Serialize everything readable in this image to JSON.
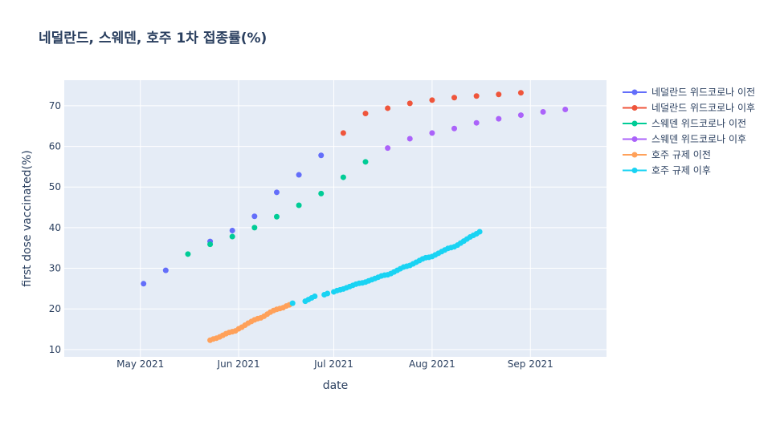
{
  "chart_data": {
    "type": "scatter",
    "title": "네덜란드, 스웨덴, 호주 1차 접종률(%)",
    "xlabel": "date",
    "ylabel": "first dose vaccinated(%)",
    "xlim": [
      "2021-04-07",
      "2021-09-25"
    ],
    "ylim": [
      8.2,
      76.3
    ],
    "x_ticks": [
      {
        "date": "2021-05-01",
        "label": "May 2021"
      },
      {
        "date": "2021-06-01",
        "label": "Jun 2021"
      },
      {
        "date": "2021-07-01",
        "label": "Jul 2021"
      },
      {
        "date": "2021-08-01",
        "label": "Aug 2021"
      },
      {
        "date": "2021-09-01",
        "label": "Sep 2021"
      }
    ],
    "y_ticks": [
      10,
      20,
      30,
      40,
      50,
      60,
      70
    ],
    "grid": true,
    "legend_position": "right",
    "series": [
      {
        "name": "네덜란드 위드코로나 이전",
        "color": "#636efa",
        "points": [
          [
            "2021-05-02",
            26.2
          ],
          [
            "2021-05-09",
            29.5
          ],
          [
            "2021-05-23",
            36.6
          ],
          [
            "2021-05-30",
            39.3
          ],
          [
            "2021-06-06",
            42.8
          ],
          [
            "2021-06-13",
            48.7
          ],
          [
            "2021-06-20",
            53.0
          ],
          [
            "2021-06-27",
            57.8
          ]
        ]
      },
      {
        "name": "네덜란드 위드코로나 이후",
        "color": "#ef553b",
        "points": [
          [
            "2021-07-04",
            63.3
          ],
          [
            "2021-07-11",
            68.1
          ],
          [
            "2021-07-18",
            69.4
          ],
          [
            "2021-07-25",
            70.6
          ],
          [
            "2021-08-01",
            71.4
          ],
          [
            "2021-08-08",
            72.0
          ],
          [
            "2021-08-15",
            72.4
          ],
          [
            "2021-08-22",
            72.8
          ],
          [
            "2021-08-29",
            73.2
          ]
        ]
      },
      {
        "name": "스웨덴 위드코로나 이전",
        "color": "#00cc96",
        "points": [
          [
            "2021-05-16",
            33.5
          ],
          [
            "2021-05-23",
            35.9
          ],
          [
            "2021-05-30",
            37.8
          ],
          [
            "2021-06-06",
            40.0
          ],
          [
            "2021-06-13",
            42.7
          ],
          [
            "2021-06-20",
            45.5
          ],
          [
            "2021-06-27",
            48.4
          ],
          [
            "2021-07-04",
            52.4
          ],
          [
            "2021-07-11",
            56.2
          ]
        ]
      },
      {
        "name": "스웨덴 위드코로나 이후",
        "color": "#ab63fa",
        "points": [
          [
            "2021-07-18",
            59.6
          ],
          [
            "2021-07-25",
            61.9
          ],
          [
            "2021-08-01",
            63.3
          ],
          [
            "2021-08-08",
            64.4
          ],
          [
            "2021-08-15",
            65.8
          ],
          [
            "2021-08-22",
            66.8
          ],
          [
            "2021-08-29",
            67.7
          ],
          [
            "2021-09-05",
            68.5
          ],
          [
            "2021-09-12",
            69.1
          ]
        ]
      },
      {
        "name": "호주 규제 이전",
        "color": "#ffa15a",
        "points": [
          [
            "2021-05-23",
            12.3
          ],
          [
            "2021-05-24",
            12.6
          ],
          [
            "2021-05-25",
            12.8
          ],
          [
            "2021-05-26",
            13.1
          ],
          [
            "2021-05-27",
            13.5
          ],
          [
            "2021-05-28",
            13.9
          ],
          [
            "2021-05-29",
            14.2
          ],
          [
            "2021-05-30",
            14.4
          ],
          [
            "2021-05-31",
            14.6
          ],
          [
            "2021-06-01",
            15.1
          ],
          [
            "2021-06-02",
            15.5
          ],
          [
            "2021-06-03",
            16.0
          ],
          [
            "2021-06-04",
            16.5
          ],
          [
            "2021-06-05",
            16.9
          ],
          [
            "2021-06-06",
            17.3
          ],
          [
            "2021-06-07",
            17.6
          ],
          [
            "2021-06-08",
            17.8
          ],
          [
            "2021-06-09",
            18.2
          ],
          [
            "2021-06-10",
            18.7
          ],
          [
            "2021-06-11",
            19.2
          ],
          [
            "2021-06-12",
            19.6
          ],
          [
            "2021-06-13",
            19.9
          ],
          [
            "2021-06-14",
            20.1
          ],
          [
            "2021-06-15",
            20.3
          ],
          [
            "2021-06-16",
            20.7
          ],
          [
            "2021-06-17",
            21.0
          ]
        ]
      },
      {
        "name": "호주 규제 이후",
        "color": "#19d3f3",
        "points": [
          [
            "2021-06-18",
            21.4
          ],
          [
            "2021-06-22",
            21.9
          ],
          [
            "2021-06-23",
            22.3
          ],
          [
            "2021-06-24",
            22.7
          ],
          [
            "2021-06-25",
            23.1
          ],
          [
            "2021-06-28",
            23.5
          ],
          [
            "2021-06-29",
            23.8
          ],
          [
            "2021-07-01",
            24.2
          ],
          [
            "2021-07-02",
            24.5
          ],
          [
            "2021-07-03",
            24.7
          ],
          [
            "2021-07-04",
            24.9
          ],
          [
            "2021-07-05",
            25.2
          ],
          [
            "2021-07-06",
            25.5
          ],
          [
            "2021-07-07",
            25.8
          ],
          [
            "2021-07-08",
            26.1
          ],
          [
            "2021-07-09",
            26.3
          ],
          [
            "2021-07-10",
            26.4
          ],
          [
            "2021-07-11",
            26.6
          ],
          [
            "2021-07-12",
            26.9
          ],
          [
            "2021-07-13",
            27.2
          ],
          [
            "2021-07-14",
            27.5
          ],
          [
            "2021-07-15",
            27.8
          ],
          [
            "2021-07-16",
            28.1
          ],
          [
            "2021-07-17",
            28.3
          ],
          [
            "2021-07-18",
            28.4
          ],
          [
            "2021-07-19",
            28.7
          ],
          [
            "2021-07-20",
            29.1
          ],
          [
            "2021-07-21",
            29.5
          ],
          [
            "2021-07-22",
            29.9
          ],
          [
            "2021-07-23",
            30.3
          ],
          [
            "2021-07-24",
            30.5
          ],
          [
            "2021-07-25",
            30.7
          ],
          [
            "2021-07-26",
            31.1
          ],
          [
            "2021-07-27",
            31.5
          ],
          [
            "2021-07-28",
            31.9
          ],
          [
            "2021-07-29",
            32.3
          ],
          [
            "2021-07-30",
            32.6
          ],
          [
            "2021-07-31",
            32.7
          ],
          [
            "2021-08-01",
            32.9
          ],
          [
            "2021-08-02",
            33.3
          ],
          [
            "2021-08-03",
            33.7
          ],
          [
            "2021-08-04",
            34.1
          ],
          [
            "2021-08-05",
            34.5
          ],
          [
            "2021-08-06",
            34.9
          ],
          [
            "2021-08-07",
            35.1
          ],
          [
            "2021-08-08",
            35.3
          ],
          [
            "2021-08-09",
            35.7
          ],
          [
            "2021-08-10",
            36.2
          ],
          [
            "2021-08-11",
            36.7
          ],
          [
            "2021-08-12",
            37.2
          ],
          [
            "2021-08-13",
            37.7
          ],
          [
            "2021-08-14",
            38.1
          ],
          [
            "2021-08-15",
            38.5
          ],
          [
            "2021-08-16",
            39.0
          ]
        ]
      }
    ]
  }
}
